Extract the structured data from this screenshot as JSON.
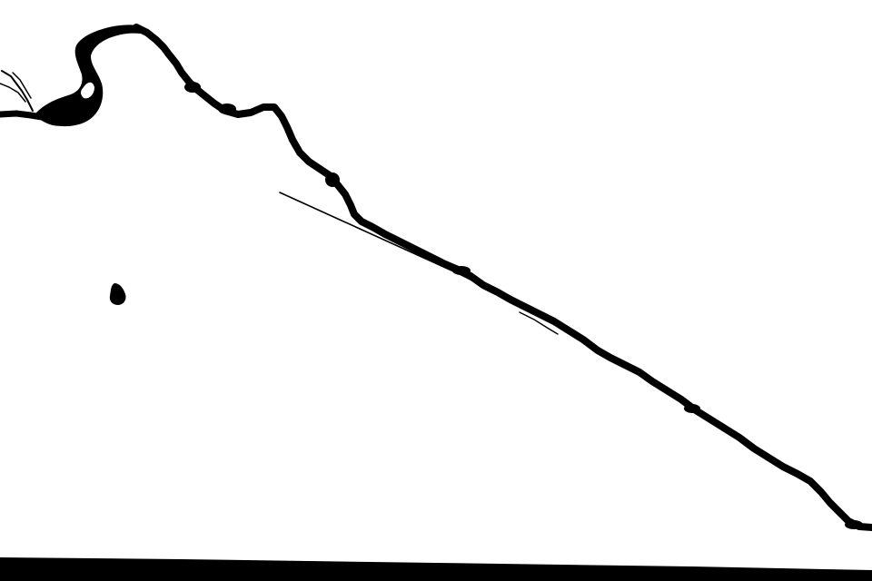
{
  "scene": {
    "background_color": "#ffffff",
    "ink_color": "#000000",
    "elements": [
      "crack-line",
      "hook-curl",
      "thin-splinter",
      "ink-blot",
      "bottom-band"
    ]
  }
}
